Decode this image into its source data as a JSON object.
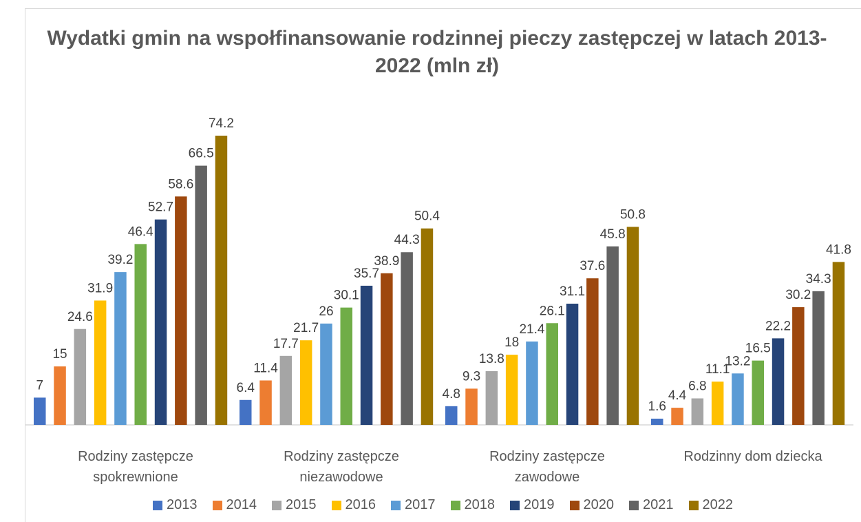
{
  "chart_data": {
    "type": "bar",
    "title": "Wydatki gmin na wspołfinansowanie rodzinnej pieczy zastępczej w latach 2013-2022 (mln zł)",
    "categories": [
      "Rodziny zastępcze spokrewnione",
      "Rodziny zastępcze niezawodowe",
      "Rodziny zastępcze zawodowe",
      "Rodzinny dom dziecka"
    ],
    "series": [
      {
        "name": "2013",
        "color": "#4472c4",
        "values": [
          7,
          6.4,
          4.8,
          1.6
        ]
      },
      {
        "name": "2014",
        "color": "#ed7d31",
        "values": [
          15,
          11.4,
          9.3,
          4.4
        ]
      },
      {
        "name": "2015",
        "color": "#a5a5a5",
        "values": [
          24.6,
          17.7,
          13.8,
          6.8
        ]
      },
      {
        "name": "2016",
        "color": "#ffc000",
        "values": [
          31.9,
          21.7,
          18,
          11.1
        ]
      },
      {
        "name": "2017",
        "color": "#5b9bd5",
        "values": [
          39.2,
          26,
          21.4,
          13.2
        ]
      },
      {
        "name": "2018",
        "color": "#70ad47",
        "values": [
          46.4,
          30.1,
          26.1,
          16.5
        ]
      },
      {
        "name": "2019",
        "color": "#264478",
        "values": [
          52.7,
          35.7,
          31.1,
          22.2
        ]
      },
      {
        "name": "2020",
        "color": "#9e480e",
        "values": [
          58.6,
          38.9,
          37.6,
          30.2
        ]
      },
      {
        "name": "2021",
        "color": "#636363",
        "values": [
          66.5,
          44.3,
          45.8,
          34.3
        ]
      },
      {
        "name": "2022",
        "color": "#997300",
        "values": [
          74.2,
          50.4,
          50.8,
          41.8
        ]
      }
    ]
  }
}
